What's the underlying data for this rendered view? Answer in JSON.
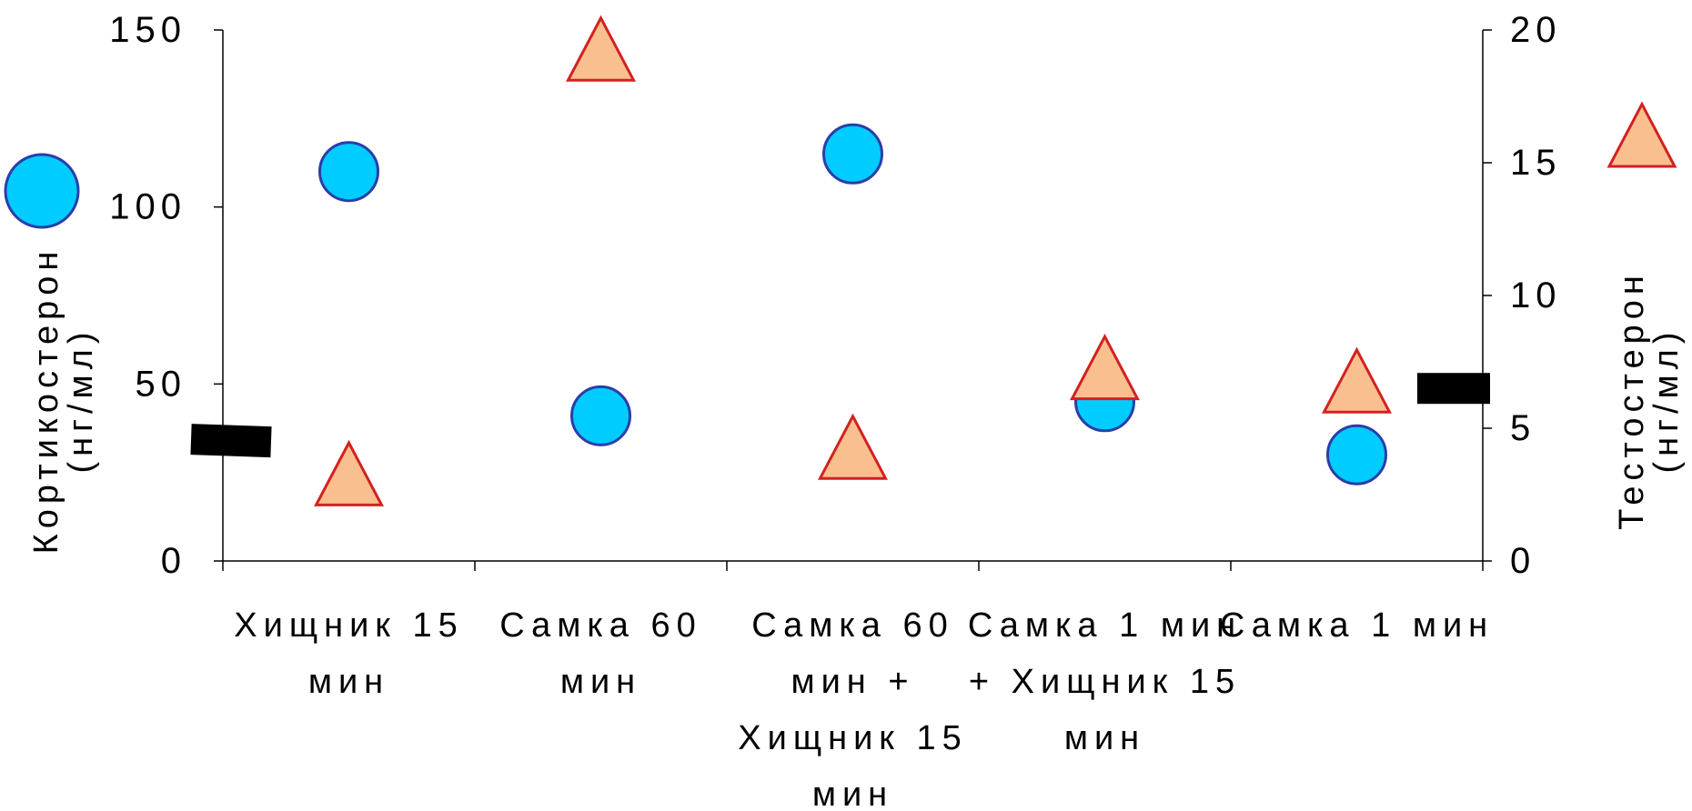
{
  "chart_data": {
    "type": "scatter",
    "categories": [
      [
        "Хищник 15",
        "мин"
      ],
      [
        "Самка 60",
        "мин"
      ],
      [
        "Самка 60",
        "мин +",
        "Хищник 15",
        "мин"
      ],
      [
        "Самка 1 мин",
        "+ Хищник 15",
        "мин"
      ],
      [
        "Самка 1 мин"
      ]
    ],
    "series": [
      {
        "axis": "left",
        "marker": "circle",
        "color": "#00ccff",
        "edge": "#2a3ea8",
        "values": [
          110,
          41,
          115,
          45,
          30
        ]
      },
      {
        "axis": "right",
        "marker": "triangle",
        "color": "#f9bf8f",
        "edge": "#d42020",
        "values": [
          3,
          19,
          4,
          7,
          6.5
        ]
      }
    ],
    "y_left": {
      "label_lines": [
        "Кортикостерон",
        "(нг/мл)"
      ],
      "ylim": [
        0,
        150
      ],
      "ticks": [
        "0",
        "50",
        "100",
        "150"
      ],
      "baseline": 34,
      "legend_marker": "circle"
    },
    "y_right": {
      "label_lines": [
        "Тестостерон",
        "(нг/мл)"
      ],
      "ylim": [
        0,
        20
      ],
      "ticks": [
        "0",
        "5",
        "10",
        "15",
        "20"
      ],
      "baseline": 6.5,
      "legend_marker": "triangle"
    },
    "grid": false
  }
}
